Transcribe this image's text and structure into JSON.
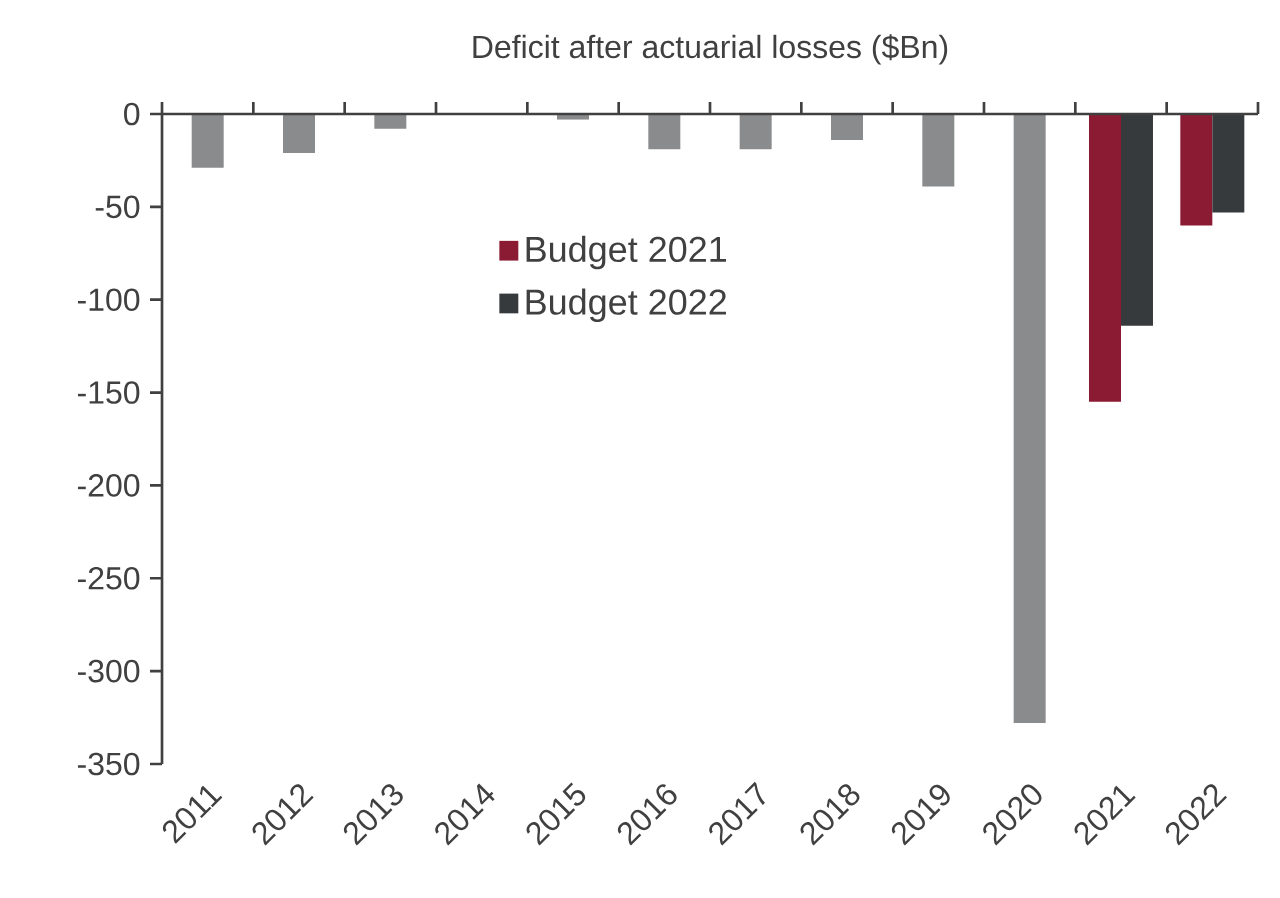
{
  "chart_data": {
    "type": "bar",
    "title": "Deficit after actuarial losses ($Bn)",
    "categories": [
      "2011",
      "2012",
      "2013",
      "2014",
      "2015",
      "2016",
      "2017",
      "2018",
      "2019",
      "2020",
      "2021",
      "2022"
    ],
    "series": [
      {
        "color": "#8a8b8d",
        "values": [
          -29,
          -21,
          -8,
          0,
          -3,
          -19,
          -19,
          -14,
          -39,
          -328,
          null,
          null
        ]
      },
      {
        "name": "Budget 2021",
        "color": "#8b1a33",
        "values": [
          null,
          null,
          null,
          null,
          null,
          null,
          null,
          null,
          null,
          null,
          -155,
          -60
        ]
      },
      {
        "name": "Budget 2022",
        "color": "#373a3d",
        "values": [
          null,
          null,
          null,
          null,
          null,
          null,
          null,
          null,
          null,
          null,
          -114,
          -53
        ]
      }
    ],
    "ylim": [
      -350,
      0
    ],
    "yticks": [
      -350,
      -300,
      -250,
      -200,
      -150,
      -100,
      -50,
      0
    ],
    "grid": false,
    "legend": "top left"
  }
}
